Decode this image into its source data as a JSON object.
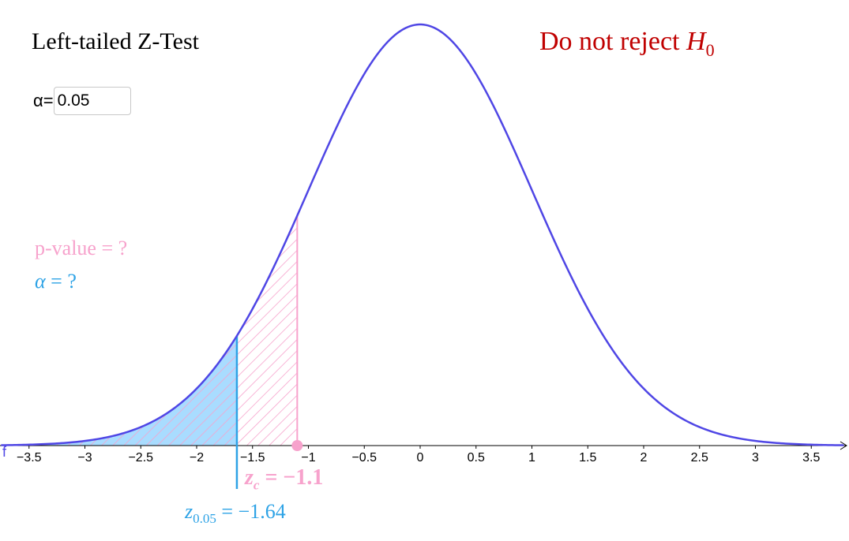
{
  "title": "Left-tailed Z-Test",
  "decision": {
    "text": "Do not reject",
    "symbol": "H",
    "subscript": "0",
    "color": "#c00000"
  },
  "alpha_input": {
    "label": "α=",
    "value": "0.05"
  },
  "pvalue_label": {
    "text": "p-value = ?",
    "color": "#f7a2cc"
  },
  "alpha_label": {
    "symbol": "α",
    "rest": " = ?",
    "color": "#2ea3e6"
  },
  "zc_label": {
    "symbol": "z",
    "subscript": "c",
    "rest": " = −1.1",
    "color": "#f7a2cc"
  },
  "zcrit_label": {
    "symbol": "z",
    "subscript": "0.05",
    "rest": " = −1.64",
    "color": "#2ea3e6"
  },
  "axis_function_label": "f",
  "chart_data": {
    "type": "area",
    "curve": "standard normal density",
    "mean": 0,
    "sd": 1,
    "xlim": [
      -3.75,
      3.8
    ],
    "x_ticks": [
      -3.5,
      -3,
      -2.5,
      -2,
      -1.5,
      -1,
      -0.5,
      0,
      0.5,
      1,
      1.5,
      2,
      2.5,
      3,
      3.5
    ],
    "x_tick_labels": [
      "−3.5",
      "−3",
      "−2.5",
      "−2",
      "−1.5",
      "−1",
      "−0.5",
      "0",
      "0.5",
      "1",
      "1.5",
      "2",
      "2.5",
      "3",
      "3.5"
    ],
    "test_statistic_z": -1.1,
    "critical_z": -1.64,
    "alpha": 0.05,
    "curve_color": "#4f46e5",
    "rejection_fill_color": "#a9dcff",
    "pvalue_hatch_color": "#f7a2cc",
    "critical_line_color": "#2ea3e6",
    "grid": false
  }
}
